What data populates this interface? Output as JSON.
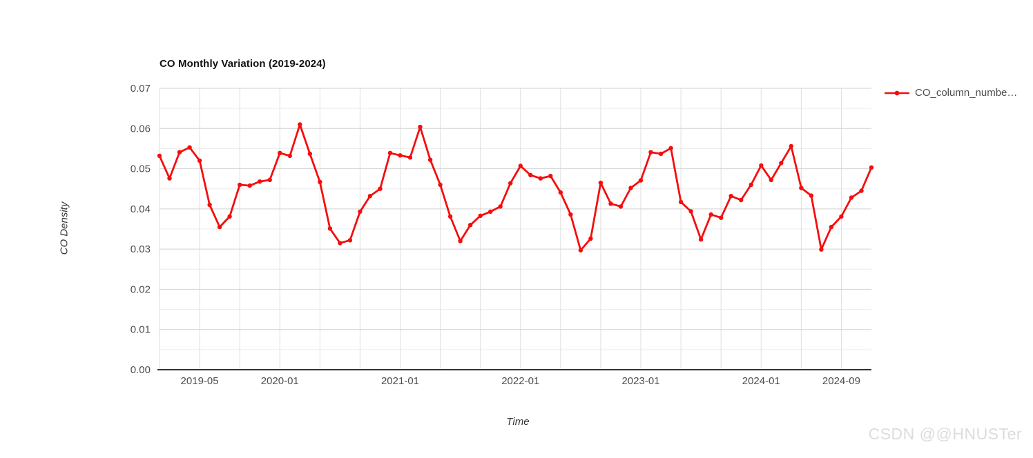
{
  "title": "CO Monthly Variation (2019-2024)",
  "legend": {
    "label": "CO_column_numbe…"
  },
  "watermark": "CSDN @@HNUSTer",
  "chart_data": {
    "type": "line",
    "title": "CO Monthly Variation (2019-2024)",
    "xlabel": "Time",
    "ylabel": "CO Density",
    "series_name": "CO_column_numbe…",
    "series_color": "#f50d0d",
    "legend_position": "right",
    "grid": true,
    "ylim": [
      0,
      0.07
    ],
    "y_ticks": [
      0.0,
      0.01,
      0.02,
      0.03,
      0.04,
      0.05,
      0.06,
      0.07
    ],
    "y_tick_step": 0.01,
    "y_minor_step": 0.005,
    "x_grid_step_months": 4,
    "x_tick_labels": [
      {
        "label": "2019-05",
        "index": 4
      },
      {
        "label": "2020-01",
        "index": 12
      },
      {
        "label": "2021-01",
        "index": 24
      },
      {
        "label": "2022-01",
        "index": 36
      },
      {
        "label": "2023-01",
        "index": 48
      },
      {
        "label": "2024-01",
        "index": 60
      },
      {
        "label": "2024-09",
        "index": 68
      }
    ],
    "x": [
      "2019-01",
      "2019-02",
      "2019-03",
      "2019-04",
      "2019-05",
      "2019-06",
      "2019-07",
      "2019-08",
      "2019-09",
      "2019-10",
      "2019-11",
      "2019-12",
      "2020-01",
      "2020-02",
      "2020-03",
      "2020-04",
      "2020-05",
      "2020-06",
      "2020-07",
      "2020-08",
      "2020-09",
      "2020-10",
      "2020-11",
      "2020-12",
      "2021-01",
      "2021-02",
      "2021-03",
      "2021-04",
      "2021-05",
      "2021-06",
      "2021-07",
      "2021-08",
      "2021-09",
      "2021-10",
      "2021-11",
      "2021-12",
      "2022-01",
      "2022-02",
      "2022-03",
      "2022-04",
      "2022-05",
      "2022-06",
      "2022-07",
      "2022-08",
      "2022-09",
      "2022-10",
      "2022-11",
      "2022-12",
      "2023-01",
      "2023-02",
      "2023-03",
      "2023-04",
      "2023-05",
      "2023-06",
      "2023-07",
      "2023-08",
      "2023-09",
      "2023-10",
      "2023-11",
      "2023-12",
      "2024-01",
      "2024-02",
      "2024-03",
      "2024-04",
      "2024-05",
      "2024-06",
      "2024-07",
      "2024-08",
      "2024-09",
      "2024-10",
      "2024-11",
      "2024-12"
    ],
    "values": [
      0.0532,
      0.0476,
      0.0541,
      0.0553,
      0.052,
      0.041,
      0.0355,
      0.0381,
      0.046,
      0.0458,
      0.0468,
      0.0472,
      0.0539,
      0.0532,
      0.061,
      0.0537,
      0.0467,
      0.0351,
      0.0315,
      0.0322,
      0.0393,
      0.0432,
      0.045,
      0.0539,
      0.0533,
      0.0528,
      0.0604,
      0.0522,
      0.046,
      0.0381,
      0.032,
      0.036,
      0.0383,
      0.0393,
      0.0406,
      0.0464,
      0.0507,
      0.0484,
      0.0476,
      0.0482,
      0.0441,
      0.0386,
      0.0297,
      0.0326,
      0.0465,
      0.0413,
      0.0406,
      0.0452,
      0.0471,
      0.0541,
      0.0537,
      0.0551,
      0.0417,
      0.0394,
      0.0324,
      0.0386,
      0.0378,
      0.0432,
      0.0422,
      0.046,
      0.0508,
      0.0472,
      0.0514,
      0.0556,
      0.0452,
      0.0433,
      0.0299,
      0.0355,
      0.0381,
      0.0428,
      0.0445,
      0.0503
    ]
  },
  "colors": {
    "series": "#f50d0d",
    "grid_major": "#d2d2d2",
    "grid_minor": "#ececec",
    "grid_vertical": "#dedede",
    "axis_line": "#333333",
    "tick_label": "#4d4d4d"
  }
}
